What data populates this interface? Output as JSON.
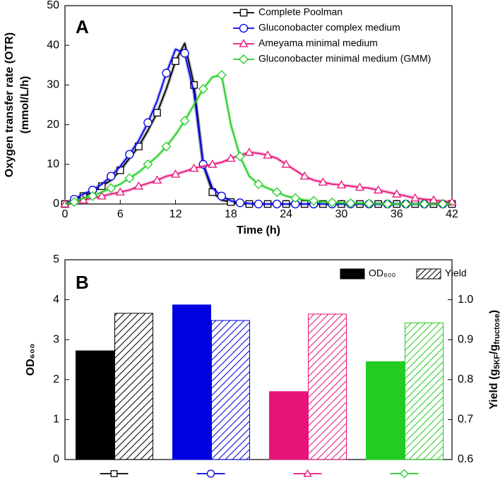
{
  "chart_data": [
    {
      "type": "line",
      "title": "A",
      "xlabel": "Time    (h)",
      "ylabel": [
        "Oxygen transfer rate (OTR)",
        "(mmol/L/h)"
      ],
      "x": [
        0,
        1,
        2,
        3,
        4,
        5,
        6,
        7,
        8,
        9,
        10,
        11,
        12,
        13,
        14,
        15,
        16,
        17,
        18,
        19,
        20,
        21,
        22,
        23,
        24,
        25,
        26,
        27,
        28,
        29,
        30,
        31,
        32,
        33,
        34,
        35,
        36,
        37,
        38,
        39,
        40,
        41,
        42
      ],
      "xlim": [
        0,
        42
      ],
      "xticks": [
        0,
        6,
        12,
        18,
        24,
        30,
        36,
        42
      ],
      "ylim": [
        0,
        50
      ],
      "yticks": [
        0,
        10,
        20,
        30,
        40,
        50
      ],
      "series": [
        {
          "name": "Complete Poolman",
          "color": "#000000",
          "marker": "square",
          "values": [
            0,
            1,
            2,
            3,
            4.5,
            6,
            8.5,
            11.5,
            14.5,
            18.5,
            23,
            29,
            36,
            40.5,
            30,
            10,
            3,
            1,
            0.5,
            0.2,
            0,
            0,
            0,
            0,
            0,
            0,
            0,
            0,
            0,
            0,
            0,
            0,
            0,
            0,
            0,
            0,
            0,
            0,
            0,
            0,
            0,
            0,
            0
          ]
        },
        {
          "name": "Gluconobacter complex medium",
          "color": "#0000e0",
          "marker": "circle",
          "values": [
            0,
            1.2,
            2.5,
            3.5,
            5,
            7,
            9.5,
            12.5,
            16,
            20.5,
            26,
            33,
            39,
            38,
            28,
            10,
            4,
            2,
            0.8,
            0.3,
            0.1,
            0,
            0,
            0,
            0,
            0,
            0,
            0,
            0,
            0,
            0,
            0,
            0,
            0,
            0,
            0,
            0,
            0,
            0,
            0,
            0,
            0,
            0
          ]
        },
        {
          "name": "Ameyama minimal medium",
          "color": "#e8147a",
          "marker": "triangle",
          "values": [
            0,
            0.5,
            1,
            1.5,
            2,
            2.5,
            3,
            3.5,
            4.5,
            5.2,
            6,
            7,
            7.5,
            8.2,
            9,
            9.5,
            10,
            10.5,
            11.5,
            12.3,
            13,
            12.8,
            12.3,
            11.5,
            10,
            8.5,
            7,
            6,
            5.5,
            5,
            4.8,
            4.5,
            4.2,
            4,
            3.5,
            3,
            2.5,
            2,
            1.5,
            1.2,
            1,
            0.7,
            0.5
          ]
        },
        {
          "name": "Gluconobacter minimal medium (GMM)",
          "color": "#22cc22",
          "marker": "diamond",
          "values": [
            0,
            0.5,
            1.5,
            2,
            3,
            4,
            5,
            6.5,
            8,
            10,
            12,
            14.5,
            17.5,
            21,
            25,
            29,
            32,
            32.5,
            20,
            12,
            7,
            5,
            4,
            3,
            2,
            1.5,
            1,
            0.8,
            0.5,
            0.4,
            0.3,
            0.2,
            0.2,
            0.1,
            0.1,
            0,
            0,
            0,
            0,
            0,
            0,
            0,
            0
          ]
        }
      ]
    },
    {
      "type": "bar",
      "title": "B",
      "ylabel": "OD₆₀₀",
      "y2label": [
        "Yield   (g",
        "5KF",
        "/g",
        "fructose",
        ")"
      ],
      "categories": [
        null,
        null,
        null,
        null
      ],
      "category_markers": [
        "square",
        "circle",
        "triangle",
        "diamond"
      ],
      "category_colors": [
        "#000000",
        "#0000e0",
        "#e8147a",
        "#22cc22"
      ],
      "ylim": [
        0,
        5
      ],
      "yticks": [
        0,
        1,
        2,
        3,
        4,
        5
      ],
      "y2lim": [
        0.6,
        1.1
      ],
      "y2ticks": [
        0.6,
        0.7,
        0.8,
        0.9,
        {
          "value": 1,
          "label": "1.0"
        }
      ],
      "series": [
        {
          "name": "OD₆₀₀",
          "color": "#000000",
          "values": [
            2.72,
            3.87,
            1.7,
            2.45
          ]
        },
        {
          "name": "Yield",
          "color": "#000000",
          "axis": "y2",
          "hatch": true,
          "values": [
            0.966,
            0.948,
            0.964,
            0.942
          ]
        }
      ]
    }
  ]
}
